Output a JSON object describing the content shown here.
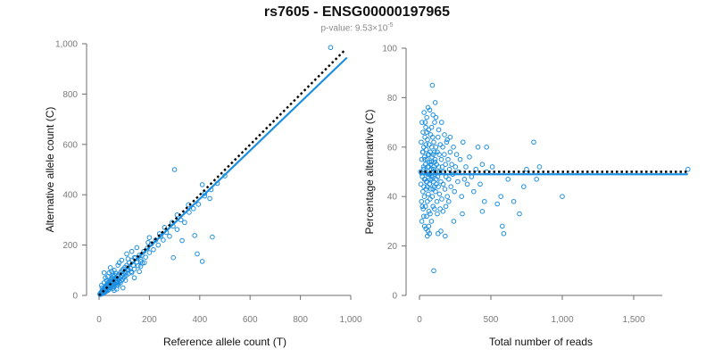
{
  "title": "rs7605 - ENSG00000197965",
  "subtitle": {
    "prefix": "p-value: 9.53×10",
    "exponent": "-5"
  },
  "colors": {
    "points": "#1f8fe0",
    "fit_line": "#1f8fe0",
    "reference_line": "#000000",
    "axis": "#6e6e6e",
    "tick_text": "#7a7a7a"
  },
  "chart_data": [
    {
      "type": "scatter",
      "xlabel": "Reference allele count (T)",
      "ylabel": "Alternative allele count (C)",
      "xlim": [
        0,
        1000
      ],
      "ylim": [
        0,
        1000
      ],
      "xticks": [
        0,
        200,
        400,
        600,
        800,
        1000
      ],
      "yticks": [
        0,
        200,
        400,
        600,
        800,
        1000
      ],
      "xtick_labels": [
        "0",
        "200",
        "400",
        "600",
        "800",
        "1,000"
      ],
      "ytick_labels": [
        "0",
        "200",
        "400",
        "600",
        "800",
        "1,000"
      ],
      "reference_line": {
        "style": "dotted",
        "x": [
          0,
          980
        ],
        "y": [
          0,
          978
        ]
      },
      "fit_line": {
        "style": "solid",
        "x": [
          0,
          985
        ],
        "y": [
          0,
          945
        ]
      },
      "points": [
        [
          3,
          5
        ],
        [
          5,
          8
        ],
        [
          6,
          4
        ],
        [
          8,
          12
        ],
        [
          9,
          6
        ],
        [
          10,
          15
        ],
        [
          11,
          9
        ],
        [
          12,
          18
        ],
        [
          13,
          11
        ],
        [
          14,
          7
        ],
        [
          15,
          20
        ],
        [
          16,
          14
        ],
        [
          17,
          25
        ],
        [
          18,
          10
        ],
        [
          19,
          22
        ],
        [
          20,
          16
        ],
        [
          21,
          28
        ],
        [
          22,
          12
        ],
        [
          23,
          30
        ],
        [
          24,
          19
        ],
        [
          25,
          34
        ],
        [
          26,
          22
        ],
        [
          27,
          15
        ],
        [
          28,
          40
        ],
        [
          29,
          26
        ],
        [
          30,
          18
        ],
        [
          31,
          35
        ],
        [
          32,
          45
        ],
        [
          33,
          28
        ],
        [
          34,
          38
        ],
        [
          35,
          20
        ],
        [
          36,
          50
        ],
        [
          37,
          32
        ],
        [
          38,
          42
        ],
        [
          39,
          24
        ],
        [
          40,
          55
        ],
        [
          41,
          36
        ],
        [
          42,
          46
        ],
        [
          43,
          30
        ],
        [
          44,
          60
        ],
        [
          45,
          40
        ],
        [
          46,
          52
        ],
        [
          47,
          34
        ],
        [
          48,
          65
        ],
        [
          49,
          44
        ],
        [
          50,
          56
        ],
        [
          51,
          38
        ],
        [
          52,
          70
        ],
        [
          53,
          48
        ],
        [
          54,
          28
        ],
        [
          55,
          58
        ],
        [
          56,
          42
        ],
        [
          57,
          75
        ],
        [
          58,
          50
        ],
        [
          59,
          62
        ],
        [
          60,
          35
        ],
        [
          62,
          80
        ],
        [
          63,
          54
        ],
        [
          64,
          66
        ],
        [
          65,
          45
        ],
        [
          66,
          88
        ],
        [
          67,
          58
        ],
        [
          68,
          70
        ],
        [
          69,
          40
        ],
        [
          70,
          60
        ],
        [
          72,
          52
        ],
        [
          74,
          76
        ],
        [
          75,
          64
        ],
        [
          76,
          48
        ],
        [
          78,
          82
        ],
        [
          80,
          68
        ],
        [
          82,
          56
        ],
        [
          84,
          90
        ],
        [
          86,
          72
        ],
        [
          88,
          60
        ],
        [
          90,
          98
        ],
        [
          92,
          78
        ],
        [
          94,
          64
        ],
        [
          96,
          105
        ],
        [
          98,
          84
        ],
        [
          100,
          72
        ],
        [
          103,
          112
        ],
        [
          106,
          90
        ],
        [
          108,
          80
        ],
        [
          110,
          120
        ],
        [
          113,
          100
        ],
        [
          116,
          86
        ],
        [
          120,
          130
        ],
        [
          124,
          108
        ],
        [
          128,
          95
        ],
        [
          132,
          140
        ],
        [
          136,
          120
        ],
        [
          140,
          104
        ],
        [
          145,
          150
        ],
        [
          150,
          132
        ],
        [
          155,
          118
        ],
        [
          160,
          160
        ],
        [
          166,
          142
        ],
        [
          172,
          128
        ],
        [
          178,
          175
        ],
        [
          185,
          152
        ],
        [
          192,
          188
        ],
        [
          200,
          170
        ],
        [
          208,
          205
        ],
        [
          216,
          182
        ],
        [
          225,
          220
        ],
        [
          235,
          200
        ],
        [
          245,
          235
        ],
        [
          255,
          220
        ],
        [
          268,
          250
        ],
        [
          280,
          235
        ],
        [
          294,
          275
        ],
        [
          310,
          262
        ],
        [
          325,
          300
        ],
        [
          340,
          290
        ],
        [
          358,
          330
        ],
        [
          375,
          345
        ],
        [
          395,
          362
        ],
        [
          420,
          395
        ],
        [
          445,
          420
        ],
        [
          470,
          445
        ],
        [
          500,
          475
        ],
        [
          30,
          60
        ],
        [
          40,
          90
        ],
        [
          25,
          70
        ],
        [
          60,
          100
        ],
        [
          80,
          130
        ],
        [
          20,
          50
        ],
        [
          110,
          165
        ],
        [
          45,
          110
        ],
        [
          90,
          140
        ],
        [
          150,
          190
        ],
        [
          170,
          160
        ],
        [
          20,
          90
        ],
        [
          10,
          40
        ],
        [
          75,
          120
        ],
        [
          130,
          175
        ],
        [
          200,
          230
        ],
        [
          12,
          30
        ],
        [
          35,
          75
        ],
        [
          50,
          95
        ],
        [
          115,
          145
        ],
        [
          105,
          60
        ],
        [
          140,
          70
        ],
        [
          95,
          30
        ],
        [
          60,
          20
        ],
        [
          75,
          40
        ],
        [
          130,
          90
        ],
        [
          160,
          95
        ],
        [
          115,
          105
        ],
        [
          165,
          115
        ],
        [
          180,
          130
        ],
        [
          140,
          150
        ],
        [
          55,
          80
        ],
        [
          85,
          50
        ],
        [
          70,
          25
        ],
        [
          300,
          500
        ],
        [
          390,
          165
        ],
        [
          410,
          135
        ],
        [
          450,
          232
        ],
        [
          330,
          218
        ],
        [
          380,
          238
        ],
        [
          295,
          150
        ],
        [
          240,
          245
        ],
        [
          920,
          985
        ],
        [
          420,
          405
        ],
        [
          410,
          440
        ],
        [
          440,
          385
        ],
        [
          310,
          320
        ],
        [
          355,
          360
        ],
        [
          290,
          290
        ],
        [
          260,
          270
        ],
        [
          195,
          210
        ],
        [
          165,
          135
        ]
      ]
    },
    {
      "type": "scatter",
      "xlabel": "Total number of reads",
      "ylabel": "Percentage alternative (C)",
      "xlim": [
        0,
        1700
      ],
      "ylim": [
        0,
        100
      ],
      "xticks": [
        0,
        500,
        1000,
        1500
      ],
      "yticks": [
        0,
        20,
        40,
        60,
        80,
        100
      ],
      "xtick_labels": [
        "0",
        "500",
        "1,000",
        "1,500"
      ],
      "ytick_labels": [
        "0",
        "20",
        "40",
        "60",
        "80",
        "100"
      ],
      "reference_line": {
        "style": "dotted",
        "x": [
          0,
          1880
        ],
        "y": [
          50,
          50
        ]
      },
      "fit_line": {
        "style": "solid",
        "x": [
          0,
          1880
        ],
        "y": [
          49,
          49
        ]
      },
      "points": [
        [
          8,
          50
        ],
        [
          10,
          45
        ],
        [
          12,
          62
        ],
        [
          14,
          38
        ],
        [
          15,
          55
        ],
        [
          16,
          30
        ],
        [
          18,
          70
        ],
        [
          20,
          48
        ],
        [
          22,
          58
        ],
        [
          24,
          42
        ],
        [
          25,
          66
        ],
        [
          26,
          35
        ],
        [
          28,
          52
        ],
        [
          30,
          60
        ],
        [
          31,
          44
        ],
        [
          32,
          74
        ],
        [
          34,
          40
        ],
        [
          35,
          56
        ],
        [
          36,
          28
        ],
        [
          38,
          64
        ],
        [
          40,
          47
        ],
        [
          41,
          53
        ],
        [
          42,
          36
        ],
        [
          44,
          68
        ],
        [
          45,
          50
        ],
        [
          46,
          43
        ],
        [
          48,
          59
        ],
        [
          50,
          32
        ],
        [
          51,
          72
        ],
        [
          52,
          46
        ],
        [
          54,
          55
        ],
        [
          55,
          38
        ],
        [
          56,
          63
        ],
        [
          58,
          49
        ],
        [
          60,
          26
        ],
        [
          61,
          57
        ],
        [
          62,
          41
        ],
        [
          64,
          67
        ],
        [
          65,
          52
        ],
        [
          66,
          34
        ],
        [
          68,
          61
        ],
        [
          70,
          45
        ],
        [
          71,
          54
        ],
        [
          72,
          75
        ],
        [
          74,
          39
        ],
        [
          75,
          58
        ],
        [
          76,
          47
        ],
        [
          78,
          65
        ],
        [
          80,
          43
        ],
        [
          82,
          51
        ],
        [
          84,
          30
        ],
        [
          85,
          60
        ],
        [
          86,
          48
        ],
        [
          88,
          56
        ],
        [
          90,
          40
        ],
        [
          92,
          64
        ],
        [
          94,
          50
        ],
        [
          95,
          36
        ],
        [
          96,
          57
        ],
        [
          98,
          46
        ],
        [
          100,
          62
        ],
        [
          102,
          52
        ],
        [
          104,
          44
        ],
        [
          106,
          70
        ],
        [
          108,
          49
        ],
        [
          110,
          55
        ],
        [
          112,
          42
        ],
        [
          115,
          60
        ],
        [
          118,
          47
        ],
        [
          120,
          53
        ],
        [
          122,
          38
        ],
        [
          125,
          58
        ],
        [
          128,
          48
        ],
        [
          130,
          64
        ],
        [
          132,
          44
        ],
        [
          135,
          52
        ],
        [
          138,
          57
        ],
        [
          140,
          41
        ],
        [
          143,
          50
        ],
        [
          146,
          61
        ],
        [
          150,
          46
        ],
        [
          153,
          55
        ],
        [
          156,
          39
        ],
        [
          160,
          52
        ],
        [
          163,
          60
        ],
        [
          166,
          45
        ],
        [
          170,
          50
        ],
        [
          174,
          57
        ],
        [
          178,
          43
        ],
        [
          182,
          53
        ],
        [
          186,
          48
        ],
        [
          190,
          62
        ],
        [
          195,
          40
        ],
        [
          200,
          55
        ],
        [
          205,
          47
        ],
        [
          210,
          51
        ],
        [
          215,
          58
        ],
        [
          220,
          44
        ],
        [
          226,
          53
        ],
        [
          232,
          49
        ],
        [
          238,
          60
        ],
        [
          245,
          42
        ],
        [
          252,
          52
        ],
        [
          260,
          57
        ],
        [
          268,
          46
        ],
        [
          275,
          50
        ],
        [
          285,
          55
        ],
        [
          295,
          40
        ],
        [
          305,
          62
        ],
        [
          315,
          47
        ],
        [
          325,
          52
        ],
        [
          335,
          45
        ],
        [
          350,
          56
        ],
        [
          365,
          48
        ],
        [
          380,
          42
        ],
        [
          395,
          51
        ],
        [
          410,
          60
        ],
        [
          425,
          45
        ],
        [
          440,
          53
        ],
        [
          455,
          38
        ],
        [
          470,
          50
        ],
        [
          90,
          85
        ],
        [
          100,
          10
        ],
        [
          110,
          78
        ],
        [
          60,
          76
        ],
        [
          70,
          25
        ],
        [
          130,
          25
        ],
        [
          180,
          24
        ],
        [
          45,
          27
        ],
        [
          55,
          24
        ],
        [
          150,
          26
        ],
        [
          240,
          30
        ],
        [
          300,
          33
        ],
        [
          440,
          34
        ],
        [
          470,
          60
        ],
        [
          510,
          52
        ],
        [
          545,
          37
        ],
        [
          570,
          40
        ],
        [
          580,
          28
        ],
        [
          590,
          25
        ],
        [
          620,
          47
        ],
        [
          660,
          38
        ],
        [
          700,
          33
        ],
        [
          730,
          44
        ],
        [
          750,
          51
        ],
        [
          800,
          62
        ],
        [
          820,
          47
        ],
        [
          840,
          52
        ],
        [
          1000,
          40
        ],
        [
          1880,
          51
        ],
        [
          20,
          36
        ],
        [
          30,
          32
        ],
        [
          40,
          70
        ],
        [
          50,
          66
        ],
        [
          65,
          28
        ],
        [
          75,
          33
        ],
        [
          85,
          68
        ],
        [
          95,
          73
        ],
        [
          105,
          35
        ],
        [
          115,
          72
        ],
        [
          125,
          33
        ],
        [
          135,
          67
        ],
        [
          145,
          35
        ],
        [
          155,
          70
        ],
        [
          165,
          34
        ],
        [
          175,
          65
        ],
        [
          185,
          36
        ],
        [
          195,
          63
        ],
        [
          205,
          38
        ],
        [
          215,
          64
        ],
        [
          25,
          58
        ],
        [
          35,
          47
        ],
        [
          45,
          61
        ],
        [
          55,
          44
        ],
        [
          65,
          57
        ],
        [
          75,
          49
        ],
        [
          85,
          54
        ],
        [
          95,
          43
        ],
        [
          105,
          58
        ],
        [
          115,
          50
        ],
        [
          28,
          51
        ],
        [
          38,
          55
        ],
        [
          48,
          46
        ],
        [
          58,
          52
        ],
        [
          68,
          49
        ],
        [
          78,
          53
        ],
        [
          88,
          47
        ],
        [
          98,
          51
        ],
        [
          108,
          54
        ],
        [
          118,
          45
        ]
      ]
    }
  ]
}
